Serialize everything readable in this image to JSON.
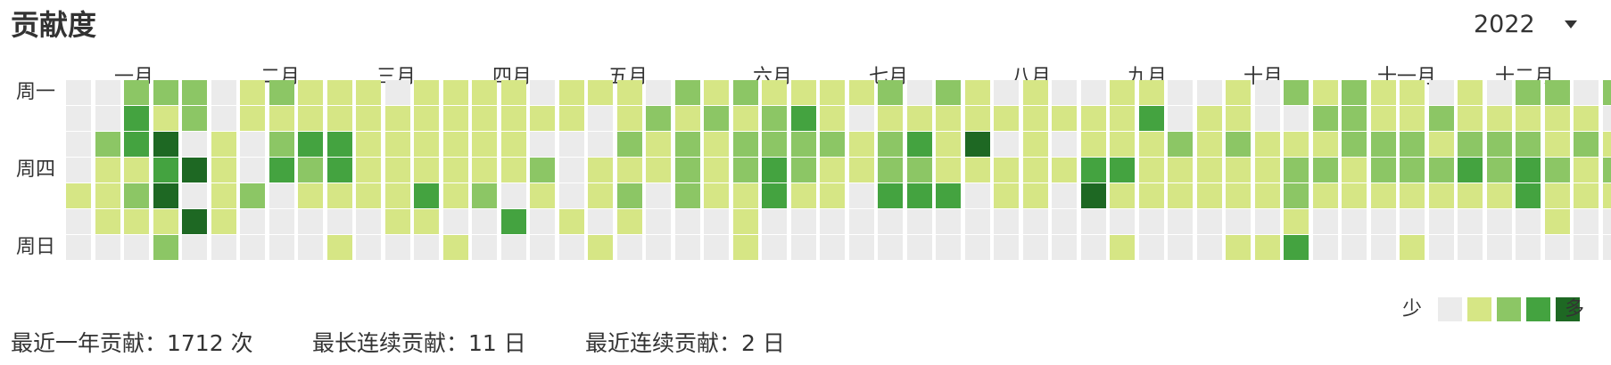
{
  "title": "贡献度",
  "year_select": {
    "value": "2022",
    "icon": "caret-down-icon"
  },
  "months": [
    "一月",
    "二月",
    "三月",
    "四月",
    "五月",
    "六月",
    "七月",
    "八月",
    "九月",
    "十月",
    "十一月",
    "十二月"
  ],
  "weekdays": [
    "周一",
    "周四",
    "周日"
  ],
  "colors": [
    "#ebebeb",
    "#d6e685",
    "#8cc665",
    "#44a340",
    "#1e6823"
  ],
  "legend": {
    "less": "少",
    "more": "多"
  },
  "stats": {
    "past_year": "最近一年贡献：1712 次",
    "longest_streak": "最长连续贡献：11 日",
    "current_streak": "最近连续贡献：2 日"
  },
  "calendar": {
    "start_col": 1,
    "end_col": 52,
    "cells": [
      "00000000000000000000000000000000000000000000000000000",
      "02000000000000000000000000000000000000000000000000000",
      "00000000000000000000000000000000000000000000000000000",
      "00000000000000000000000000000000000000000000000000000",
      "10000000000000000000000000000000000000000000000000000",
      "01000000000000000000000000000000000000000000000000000",
      "00000000000000000000000000000000000000000000000000000"
    ],
    "rows": [
      "0022201211101111011102121111202101001100102121101022021",
      "0031201111111111110121212310111111111301100221121111101",
      "0234010233111111000212122221231401011121211122212221211",
      "0113410323111111201112123211221111133111112212223232121",
      "1124012011113120101202113110333011041111112111111131113",
      "0111410000011003010100010000000000000000001000000001000",
      "0002000001000100001000010000000000001000113000100000000"
    ]
  }
}
